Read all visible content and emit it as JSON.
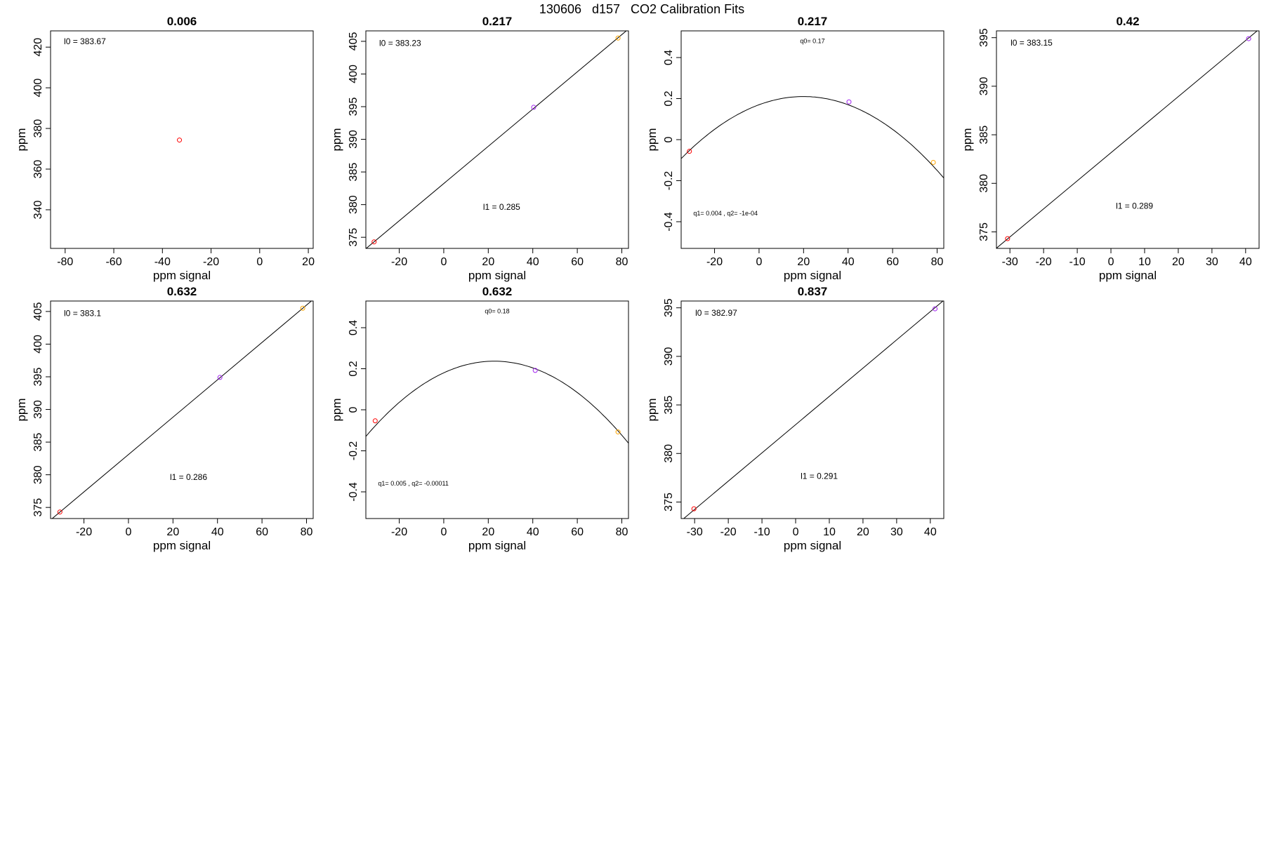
{
  "title": "130606   d157   CO2 Calibration Fits",
  "colors": {
    "frame": "#000000",
    "fit_line": "#000000",
    "low": "#ff0000",
    "mid": "#a020f0",
    "high": "#ffa500"
  },
  "chart_data": [
    {
      "type": "scatter",
      "title": "0.006",
      "xlabel": "ppm signal",
      "ylabel": "ppm",
      "xlim": [
        -86,
        22
      ],
      "ylim": [
        321,
        428
      ],
      "xticks": [
        -80,
        -60,
        -40,
        -20,
        0,
        20
      ],
      "yticks": [
        340,
        360,
        380,
        400,
        420
      ],
      "points": [
        {
          "x": -33,
          "y": 374.3,
          "color": "#ff0000"
        }
      ],
      "fit": null,
      "annotations": [
        {
          "text": "l0 =  383.67",
          "x": -80.5,
          "y": 421.5,
          "size": 12,
          "anchor": "start"
        }
      ]
    },
    {
      "type": "scatter",
      "title": "0.217",
      "xlabel": "ppm signal",
      "ylabel": "ppm",
      "xlim": [
        -35,
        83
      ],
      "ylim": [
        373.3,
        406.6
      ],
      "xticks": [
        -20,
        0,
        20,
        40,
        60,
        80
      ],
      "yticks": [
        375,
        380,
        385,
        390,
        395,
        400,
        405
      ],
      "points": [
        {
          "x": -31.3,
          "y": 374.3,
          "color": "#ff0000"
        },
        {
          "x": 40.4,
          "y": 394.9,
          "color": "#a020f0"
        },
        {
          "x": 78.3,
          "y": 405.5,
          "color": "#ffa500"
        }
      ],
      "fit": {
        "kind": "linear",
        "intercept": 383.23,
        "slope": 0.285
      },
      "annotations": [
        {
          "text": "l0 =  383.23",
          "x": -29,
          "y": 404.3,
          "size": 12,
          "anchor": "start"
        },
        {
          "text": "l1 =  0.285",
          "x": 26,
          "y": 379.2,
          "size": 12,
          "anchor": "middle"
        }
      ]
    },
    {
      "type": "scatter",
      "title": "0.217",
      "xlabel": "ppm signal",
      "ylabel": "ppm",
      "xlim": [
        -35,
        83
      ],
      "ylim": [
        -0.53,
        0.53
      ],
      "xticks": [
        -20,
        0,
        20,
        40,
        60,
        80
      ],
      "yticks": [
        -0.4,
        -0.2,
        0.0,
        0.2,
        0.4
      ],
      "points": [
        {
          "x": -31.3,
          "y": -0.057,
          "color": "#ff0000"
        },
        {
          "x": 40.4,
          "y": 0.184,
          "color": "#a020f0"
        },
        {
          "x": 78.3,
          "y": -0.111,
          "color": "#ffa500"
        }
      ],
      "fit": {
        "kind": "quadratic",
        "q0": 0.17,
        "q1": 0.004,
        "q2": -0.0001
      },
      "annotations": [
        {
          "text": "q0= 0.17",
          "x": 24,
          "y": 0.47,
          "size": 9,
          "anchor": "middle"
        },
        {
          "text": "q1= 0.004 , q2= -1e-04",
          "x": -29.5,
          "y": -0.37,
          "size": 9,
          "anchor": "start"
        }
      ]
    },
    {
      "type": "scatter",
      "title": "0.42",
      "xlabel": "ppm signal",
      "ylabel": "ppm",
      "xlim": [
        -34,
        44
      ],
      "ylim": [
        373.3,
        395.7
      ],
      "xticks": [
        -30,
        -20,
        -10,
        0,
        10,
        20,
        30,
        40
      ],
      "yticks": [
        375,
        380,
        385,
        390,
        395
      ],
      "points": [
        {
          "x": -30.7,
          "y": 374.3,
          "color": "#ff0000"
        },
        {
          "x": 40.9,
          "y": 394.9,
          "color": "#a020f0"
        }
      ],
      "fit": {
        "kind": "linear",
        "intercept": 383.15,
        "slope": 0.289
      },
      "annotations": [
        {
          "text": "l0 =  383.15",
          "x": -29.8,
          "y": 394.2,
          "size": 12,
          "anchor": "start"
        },
        {
          "text": "l1 =  0.289",
          "x": 7,
          "y": 377.4,
          "size": 12,
          "anchor": "middle"
        }
      ]
    },
    {
      "type": "scatter",
      "title": "0.632",
      "xlabel": "ppm signal",
      "ylabel": "ppm",
      "xlim": [
        -35,
        83
      ],
      "ylim": [
        373.3,
        406.6
      ],
      "xticks": [
        -20,
        0,
        20,
        40,
        60,
        80
      ],
      "yticks": [
        375,
        380,
        385,
        390,
        395,
        400,
        405
      ],
      "points": [
        {
          "x": -30.8,
          "y": 374.3,
          "color": "#ff0000"
        },
        {
          "x": 41.1,
          "y": 394.9,
          "color": "#a020f0"
        },
        {
          "x": 78.3,
          "y": 405.5,
          "color": "#ffa500"
        }
      ],
      "fit": {
        "kind": "linear",
        "intercept": 383.1,
        "slope": 0.286
      },
      "annotations": [
        {
          "text": "l0 =  383.1",
          "x": -29,
          "y": 404.3,
          "size": 12,
          "anchor": "start"
        },
        {
          "text": "l1 =  0.286",
          "x": 27,
          "y": 379.2,
          "size": 12,
          "anchor": "middle"
        }
      ]
    },
    {
      "type": "scatter",
      "title": "0.632",
      "xlabel": "ppm signal",
      "ylabel": "ppm",
      "xlim": [
        -35,
        83
      ],
      "ylim": [
        -0.53,
        0.53
      ],
      "xticks": [
        -20,
        0,
        20,
        40,
        60,
        80
      ],
      "yticks": [
        -0.4,
        -0.2,
        0.0,
        0.2,
        0.4
      ],
      "points": [
        {
          "x": -30.8,
          "y": -0.054,
          "color": "#ff0000"
        },
        {
          "x": 41.1,
          "y": 0.192,
          "color": "#a020f0"
        },
        {
          "x": 78.3,
          "y": -0.108,
          "color": "#ffa500"
        }
      ],
      "fit": {
        "kind": "quadratic",
        "q0": 0.18,
        "q1": 0.005,
        "q2": -0.00011
      },
      "annotations": [
        {
          "text": "q0= 0.18",
          "x": 24,
          "y": 0.47,
          "size": 9,
          "anchor": "middle"
        },
        {
          "text": "q1= 0.005 , q2= -0.00011",
          "x": -29.5,
          "y": -0.37,
          "size": 9,
          "anchor": "start"
        }
      ]
    },
    {
      "type": "scatter",
      "title": "0.837",
      "xlabel": "ppm signal",
      "ylabel": "ppm",
      "xlim": [
        -34,
        44
      ],
      "ylim": [
        373.3,
        395.7
      ],
      "xticks": [
        -30,
        -20,
        -10,
        0,
        10,
        20,
        30,
        40
      ],
      "yticks": [
        375,
        380,
        385,
        390,
        395
      ],
      "points": [
        {
          "x": -30.2,
          "y": 374.3,
          "color": "#ff0000"
        },
        {
          "x": 41.4,
          "y": 394.9,
          "color": "#a020f0"
        }
      ],
      "fit": {
        "kind": "linear",
        "intercept": 382.97,
        "slope": 0.291
      },
      "annotations": [
        {
          "text": "l0 =  382.97",
          "x": -29.8,
          "y": 394.2,
          "size": 12,
          "anchor": "start"
        },
        {
          "text": "l1 =  0.291",
          "x": 7,
          "y": 377.4,
          "size": 12,
          "anchor": "middle"
        }
      ]
    }
  ]
}
